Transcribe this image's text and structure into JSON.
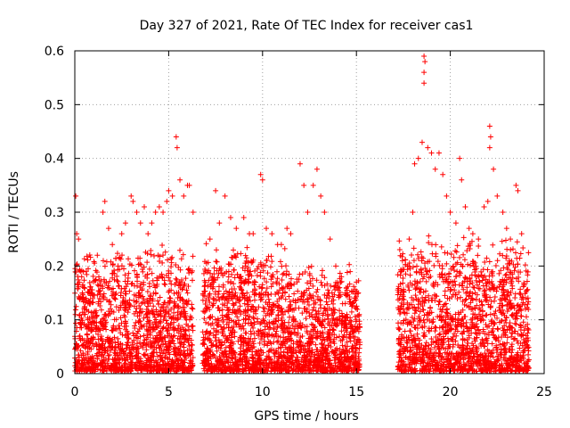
{
  "chart_data": {
    "type": "scatter",
    "title": "Day 327 of 2021, Rate Of TEC Index for receiver cas1",
    "xlabel": "GPS time / hours",
    "ylabel": "ROTI / TECUs",
    "xlim": [
      0,
      25
    ],
    "ylim": [
      0,
      0.6
    ],
    "x_ticks": [
      0,
      5,
      10,
      15,
      20,
      25
    ],
    "x_tick_labels": [
      "0",
      "5",
      "10",
      "15",
      "20",
      "25"
    ],
    "y_ticks": [
      0,
      0.1,
      0.2,
      0.3,
      0.4,
      0.5,
      0.6
    ],
    "y_tick_labels": [
      "0",
      "0.1",
      "0.2",
      "0.3",
      "0.4",
      "0.5",
      "0.6"
    ],
    "grid": true,
    "marker": "+",
    "marker_color": "#ff0000",
    "series": [
      {
        "name": "ROTI",
        "points": [
          [
            0.05,
            0.33
          ],
          [
            0.1,
            0.26
          ],
          [
            0.2,
            0.25
          ],
          [
            0.3,
            0.19
          ],
          [
            0.4,
            0.15
          ],
          [
            0.5,
            0.12
          ],
          [
            0.7,
            0.1
          ],
          [
            0.9,
            0.08
          ],
          [
            1.2,
            0.22
          ],
          [
            1.5,
            0.3
          ],
          [
            1.6,
            0.32
          ],
          [
            1.8,
            0.27
          ],
          [
            2.0,
            0.24
          ],
          [
            2.3,
            0.2
          ],
          [
            2.5,
            0.26
          ],
          [
            2.7,
            0.28
          ],
          [
            3.0,
            0.33
          ],
          [
            3.1,
            0.32
          ],
          [
            3.3,
            0.3
          ],
          [
            3.5,
            0.28
          ],
          [
            3.7,
            0.31
          ],
          [
            3.9,
            0.26
          ],
          [
            4.1,
            0.28
          ],
          [
            4.3,
            0.3
          ],
          [
            4.5,
            0.31
          ],
          [
            4.7,
            0.3
          ],
          [
            4.9,
            0.32
          ],
          [
            5.0,
            0.34
          ],
          [
            5.2,
            0.33
          ],
          [
            5.4,
            0.44
          ],
          [
            5.45,
            0.42
          ],
          [
            5.6,
            0.36
          ],
          [
            5.8,
            0.33
          ],
          [
            6.0,
            0.35
          ],
          [
            6.1,
            0.35
          ],
          [
            6.3,
            0.3
          ],
          [
            7.2,
            0.25
          ],
          [
            7.5,
            0.34
          ],
          [
            7.7,
            0.28
          ],
          [
            8.0,
            0.33
          ],
          [
            8.3,
            0.29
          ],
          [
            8.6,
            0.27
          ],
          [
            9.0,
            0.29
          ],
          [
            9.3,
            0.26
          ],
          [
            9.5,
            0.26
          ],
          [
            9.9,
            0.37
          ],
          [
            10.0,
            0.36
          ],
          [
            10.2,
            0.27
          ],
          [
            10.5,
            0.26
          ],
          [
            10.8,
            0.24
          ],
          [
            11.0,
            0.24
          ],
          [
            11.3,
            0.27
          ],
          [
            11.5,
            0.26
          ],
          [
            12.0,
            0.39
          ],
          [
            12.2,
            0.35
          ],
          [
            12.4,
            0.3
          ],
          [
            12.7,
            0.35
          ],
          [
            12.9,
            0.38
          ],
          [
            13.1,
            0.33
          ],
          [
            13.3,
            0.3
          ],
          [
            13.6,
            0.25
          ],
          [
            13.9,
            0.2
          ],
          [
            14.2,
            0.18
          ],
          [
            14.5,
            0.15
          ],
          [
            14.8,
            0.13
          ],
          [
            15.0,
            0.17
          ],
          [
            15.1,
            0.15
          ],
          [
            17.5,
            0.12
          ],
          [
            17.8,
            0.2
          ],
          [
            18.0,
            0.3
          ],
          [
            18.1,
            0.39
          ],
          [
            18.3,
            0.4
          ],
          [
            18.5,
            0.43
          ],
          [
            18.6,
            0.59
          ],
          [
            18.65,
            0.58
          ],
          [
            18.6,
            0.56
          ],
          [
            18.6,
            0.54
          ],
          [
            18.8,
            0.42
          ],
          [
            19.0,
            0.41
          ],
          [
            19.2,
            0.38
          ],
          [
            19.4,
            0.41
          ],
          [
            19.6,
            0.37
          ],
          [
            19.8,
            0.33
          ],
          [
            20.0,
            0.3
          ],
          [
            20.3,
            0.28
          ],
          [
            20.5,
            0.4
          ],
          [
            20.6,
            0.36
          ],
          [
            20.8,
            0.31
          ],
          [
            21.0,
            0.27
          ],
          [
            21.2,
            0.26
          ],
          [
            21.5,
            0.25
          ],
          [
            21.8,
            0.31
          ],
          [
            22.0,
            0.32
          ],
          [
            22.1,
            0.46
          ],
          [
            22.15,
            0.44
          ],
          [
            22.1,
            0.42
          ],
          [
            22.3,
            0.38
          ],
          [
            22.5,
            0.33
          ],
          [
            22.8,
            0.3
          ],
          [
            23.0,
            0.27
          ],
          [
            23.2,
            0.25
          ],
          [
            23.5,
            0.35
          ],
          [
            23.6,
            0.34
          ],
          [
            23.8,
            0.26
          ],
          [
            24.0,
            0.12
          ]
        ],
        "density_clusters": [
          {
            "x_range": [
              0,
              6.3
            ],
            "y_range": [
              0,
              0.24
            ],
            "count": 1500
          },
          {
            "x_range": [
              6.8,
              11.3
            ],
            "y_range": [
              0,
              0.24
            ],
            "count": 1100
          },
          {
            "x_range": [
              11.3,
              15.2
            ],
            "y_range": [
              0,
              0.2
            ],
            "count": 900
          },
          {
            "x_range": [
              17.2,
              24.2
            ],
            "y_range": [
              0,
              0.26
            ],
            "count": 1600
          }
        ]
      }
    ]
  }
}
